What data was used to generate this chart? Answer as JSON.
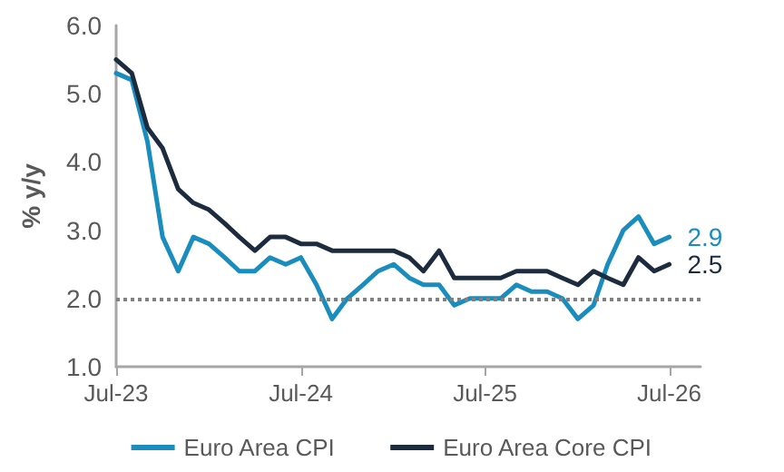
{
  "chart_data": {
    "type": "line",
    "ylabel": "% y/y",
    "x": [
      "2023-07",
      "2023-08",
      "2023-09",
      "2023-10",
      "2023-11",
      "2023-12",
      "2024-01",
      "2024-02",
      "2024-03",
      "2024-04",
      "2024-05",
      "2024-06",
      "2024-07",
      "2024-08",
      "2024-09",
      "2024-10",
      "2024-11",
      "2024-12",
      "2025-01",
      "2025-02",
      "2025-03",
      "2025-04",
      "2025-05",
      "2025-06",
      "2025-07",
      "2025-08",
      "2025-09",
      "2025-10",
      "2025-11",
      "2025-12",
      "2026-01",
      "2026-02",
      "2026-03",
      "2026-04",
      "2026-05",
      "2026-06",
      "2026-07"
    ],
    "series": [
      {
        "name": "Euro Area CPI",
        "color": "#1a8dbf",
        "values": [
          5.3,
          5.2,
          4.3,
          2.9,
          2.4,
          2.9,
          2.8,
          2.6,
          2.4,
          2.4,
          2.6,
          2.5,
          2.6,
          2.2,
          1.7,
          2.0,
          2.2,
          2.4,
          2.5,
          2.3,
          2.2,
          2.2,
          1.9,
          2.0,
          2.0,
          2.0,
          2.2,
          2.1,
          2.1,
          2.0,
          1.7,
          1.9,
          2.5,
          3.0,
          3.2,
          2.8,
          2.9
        ],
        "value_labels": [
          null,
          null,
          null,
          null,
          null,
          null,
          null,
          null,
          null,
          null,
          null,
          null,
          null,
          null,
          null,
          null,
          null,
          null,
          null,
          null,
          null,
          null,
          null,
          null,
          null,
          null,
          null,
          null,
          null,
          null,
          null,
          null,
          null,
          null,
          null,
          null,
          "2.9"
        ]
      },
      {
        "name": "Euro Area Core CPI",
        "color": "#1c2b3e",
        "values": [
          5.5,
          5.3,
          4.5,
          4.2,
          3.6,
          3.4,
          3.3,
          3.1,
          2.9,
          2.7,
          2.9,
          2.9,
          2.8,
          2.8,
          2.7,
          2.7,
          2.7,
          2.7,
          2.7,
          2.6,
          2.4,
          2.7,
          2.3,
          2.3,
          2.3,
          2.3,
          2.4,
          2.4,
          2.4,
          2.3,
          2.2,
          2.4,
          2.3,
          2.2,
          2.6,
          2.4,
          2.5
        ],
        "value_labels": [
          null,
          null,
          null,
          null,
          null,
          null,
          null,
          null,
          null,
          null,
          null,
          null,
          null,
          null,
          null,
          null,
          null,
          null,
          null,
          null,
          null,
          null,
          null,
          null,
          null,
          null,
          null,
          null,
          null,
          null,
          null,
          null,
          null,
          null,
          null,
          null,
          "2.5"
        ]
      }
    ],
    "xlim": [
      "2023-07",
      "2026-09"
    ],
    "xticks": [
      {
        "value": "2023-07",
        "label": "Jul-23"
      },
      {
        "value": "2024-07",
        "label": "Jul-24"
      },
      {
        "value": "2025-07",
        "label": "Jul-25"
      },
      {
        "value": "2026-07",
        "label": "Jul-26"
      }
    ],
    "ylim": [
      1,
      6
    ],
    "yticks": [
      {
        "value": 1,
        "label": "1.0"
      },
      {
        "value": 2,
        "label": "2.0"
      },
      {
        "value": 3,
        "label": "3.0"
      },
      {
        "value": 4,
        "label": "4.0"
      },
      {
        "value": 5,
        "label": "5.0"
      },
      {
        "value": 6,
        "label": "6.0"
      }
    ],
    "ref_lines": [
      {
        "axis": "y",
        "value": 2,
        "color": "#808080",
        "line_style": "dotted"
      }
    ],
    "grid": false,
    "legend": "bottom",
    "marker": "none",
    "line_style": "solid"
  }
}
